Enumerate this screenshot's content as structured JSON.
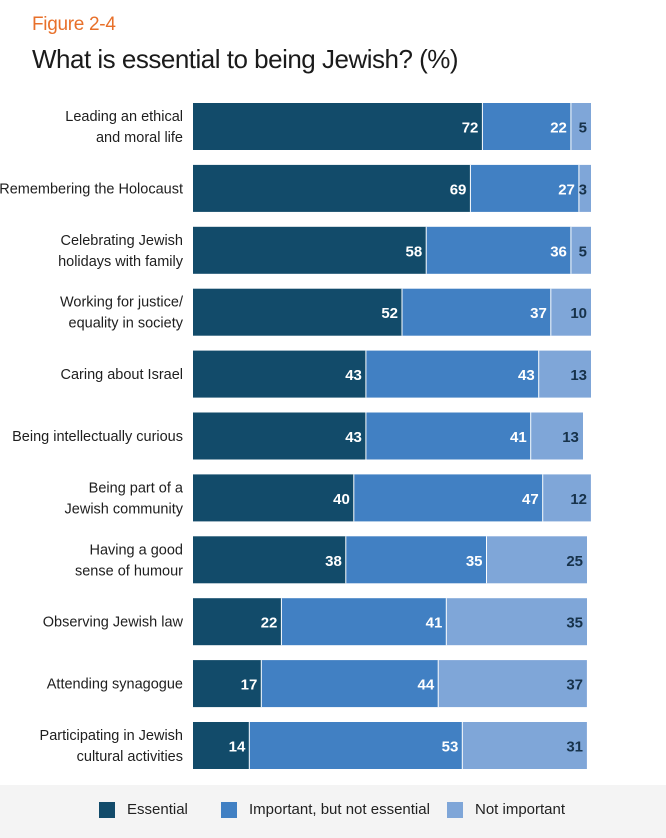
{
  "figure_label": "Figure 2-4",
  "title": "What is essential to being Jewish? (%)",
  "colors": {
    "essential": "#124b6a",
    "important": "#4180c3",
    "not_important": "#7fa6d8",
    "label_accent": "#e8702a"
  },
  "legend": {
    "essential": "Essential",
    "important": "Important, but not essential",
    "not_important": "Not important"
  },
  "chart_data": {
    "type": "bar",
    "orientation": "horizontal",
    "stacked": true,
    "title": "What is essential to being Jewish? (%)",
    "xlim": [
      0,
      100
    ],
    "grid": false,
    "legend_position": "bottom",
    "categories": [
      [
        "Leading an ethical",
        "and moral life"
      ],
      [
        "Remembering the Holocaust"
      ],
      [
        "Celebrating Jewish",
        "holidays with family"
      ],
      [
        "Working for justice/",
        "equality in society"
      ],
      [
        "Caring about Israel"
      ],
      [
        "Being intellectually curious"
      ],
      [
        "Being part of a",
        "Jewish community"
      ],
      [
        "Having a good",
        "sense of humour"
      ],
      [
        "Observing Jewish law"
      ],
      [
        "Attending synagogue"
      ],
      [
        "Participating in Jewish",
        "cultural activities"
      ]
    ],
    "series": [
      {
        "name": "Essential",
        "values": [
          72,
          69,
          58,
          52,
          43,
          43,
          40,
          38,
          22,
          17,
          14
        ]
      },
      {
        "name": "Important, but not essential",
        "values": [
          22,
          27,
          36,
          37,
          43,
          41,
          47,
          35,
          41,
          44,
          53
        ]
      },
      {
        "name": "Not important",
        "values": [
          5,
          3,
          5,
          10,
          13,
          13,
          12,
          25,
          35,
          37,
          31
        ]
      }
    ]
  }
}
